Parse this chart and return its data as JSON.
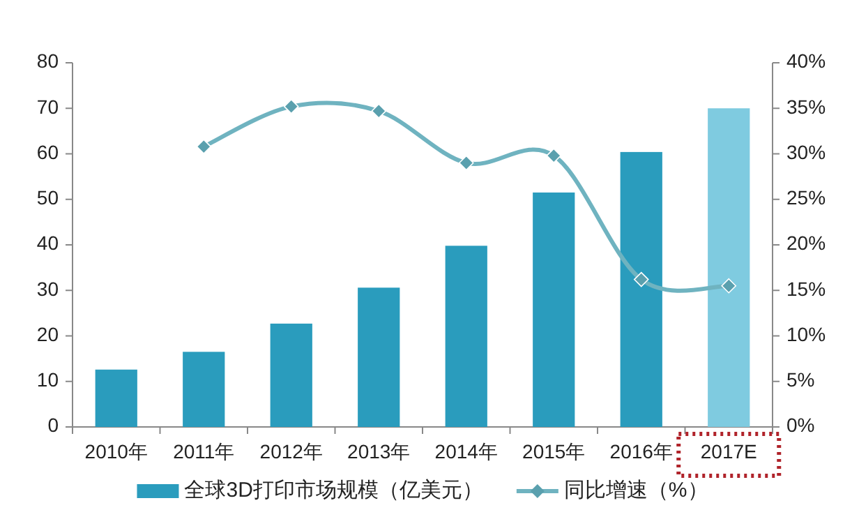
{
  "chart_data": {
    "type": "bar",
    "categories": [
      "2010年",
      "2011年",
      "2012年",
      "2013年",
      "2014年",
      "2015年",
      "2016年",
      "2017E"
    ],
    "series": [
      {
        "name": "全球3D打印市场规模（亿美元）",
        "colors": [
          "#2a9cbd",
          "#2a9cbd",
          "#2a9cbd",
          "#2a9cbd",
          "#2a9cbd",
          "#2a9cbd",
          "#2a9cbd",
          "#7fcbe0"
        ],
        "color": "#2a9cbd",
        "values": [
          12.6,
          16.5,
          22.7,
          30.6,
          39.8,
          51.5,
          60.4,
          70
        ]
      },
      {
        "name": "同比增速（%）",
        "type": "line",
        "axis": "y2",
        "color": "#6fb3c0",
        "marker": "diamond",
        "values": [
          null,
          30.8,
          35.2,
          34.7,
          29.0,
          29.8,
          16.2,
          15.5
        ]
      }
    ],
    "ylim": [
      0,
      80
    ],
    "yticks": [
      0,
      10,
      20,
      30,
      40,
      50,
      60,
      70,
      80
    ],
    "y2lim": [
      0,
      40
    ],
    "y2ticks": [
      {
        "value": 0,
        "label": "0%"
      },
      {
        "value": 5,
        "label": "5%"
      },
      {
        "value": 10,
        "label": "10%"
      },
      {
        "value": 15,
        "label": "15%"
      },
      {
        "value": 20,
        "label": "20%"
      },
      {
        "value": 25,
        "label": "25%"
      },
      {
        "value": 30,
        "label": "30%"
      },
      {
        "value": 35,
        "label": "35%"
      },
      {
        "value": 40,
        "label": "40%"
      }
    ],
    "legend": "bottom",
    "grid": false
  }
}
